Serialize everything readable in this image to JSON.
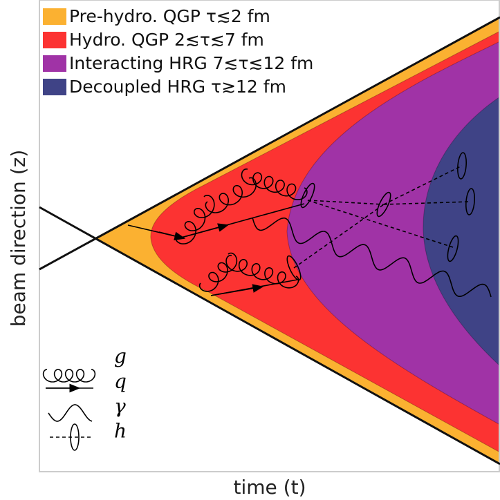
{
  "legend": {
    "items": [
      {
        "label": "Pre-hydro. QGP τ≲2 fm",
        "color": "#fbb131"
      },
      {
        "label": "Hydro. QGP 2≲τ≲7 fm",
        "color": "#fc3332"
      },
      {
        "label": "Interacting HRG 7≲τ≲12 fm",
        "color": "#a033a6"
      },
      {
        "label": "Decoupled HRG τ≳12 fm",
        "color": "#3f4386"
      }
    ]
  },
  "axes": {
    "x_label": "time (t)",
    "y_label": "beam direction (z)"
  },
  "key": {
    "items": [
      "g",
      "q",
      "γ",
      "h"
    ]
  }
}
